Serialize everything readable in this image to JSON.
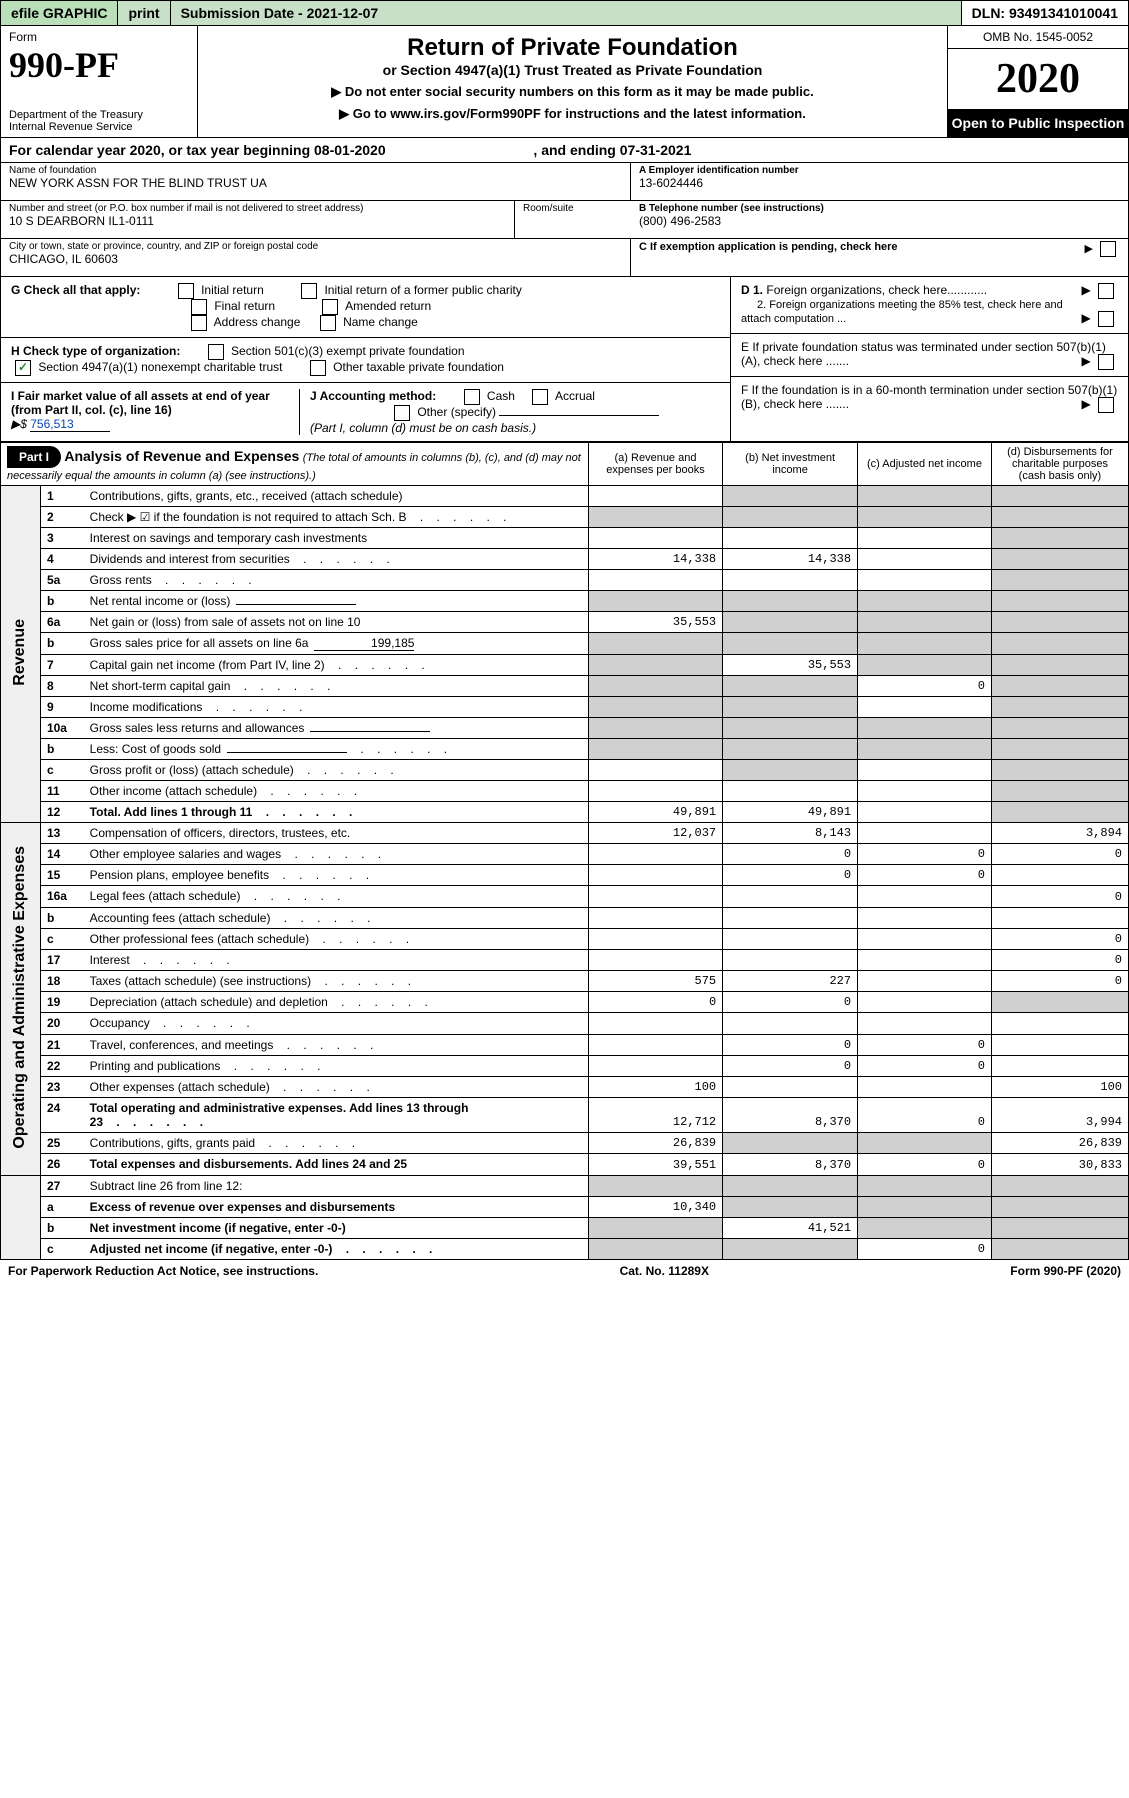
{
  "topbar": {
    "graphic": "efile GRAPHIC",
    "print": "print",
    "submission": "Submission Date - 2021-12-07",
    "dln": "DLN: 93491341010041"
  },
  "header": {
    "form": "Form",
    "number": "990-PF",
    "dept": "Department of the Treasury",
    "irs": "Internal Revenue Service",
    "title": "Return of Private Foundation",
    "subtitle": "or Section 4947(a)(1) Trust Treated as Private Foundation",
    "instr1": "▶ Do not enter social security numbers on this form as it may be made public.",
    "instr2": "▶ Go to www.irs.gov/Form990PF for instructions and the latest information.",
    "omb": "OMB No. 1545-0052",
    "year": "2020",
    "open": "Open to Public Inspection"
  },
  "calyear": {
    "text_a": "For calendar year 2020, or tax year beginning 08-01-2020",
    "text_b": ", and ending 07-31-2021"
  },
  "info": {
    "name_label": "Name of foundation",
    "name": "NEW YORK ASSN FOR THE BLIND TRUST UA",
    "addr_label": "Number and street (or P.O. box number if mail is not delivered to street address)",
    "addr": "10 S DEARBORN IL1-0111",
    "room_label": "Room/suite",
    "city_label": "City or town, state or province, country, and ZIP or foreign postal code",
    "city": "CHICAGO, IL  60603",
    "ein_label": "A Employer identification number",
    "ein": "13-6024446",
    "tel_label": "B Telephone number (see instructions)",
    "tel": "(800) 496-2583",
    "c_label": "C If exemption application is pending, check here"
  },
  "checks": {
    "g_label": "G Check all that apply:",
    "g_initial": "Initial return",
    "g_initial_former": "Initial return of a former public charity",
    "g_final": "Final return",
    "g_amended": "Amended return",
    "g_address": "Address change",
    "g_name": "Name change",
    "h_label": "H Check type of organization:",
    "h_501c3": "Section 501(c)(3) exempt private foundation",
    "h_4947": "Section 4947(a)(1) nonexempt charitable trust",
    "h_other": "Other taxable private foundation",
    "i_label": "I Fair market value of all assets at end of year (from Part II, col. (c), line 16)",
    "i_value": "756,513",
    "j_label": "J Accounting method:",
    "j_cash": "Cash",
    "j_accrual": "Accrual",
    "j_other": "Other (specify)",
    "j_note": "(Part I, column (d) must be on cash basis.)",
    "d1": "D 1. Foreign organizations, check here............",
    "d2": "2. Foreign organizations meeting the 85% test, check here and attach computation ...",
    "e_label": "E  If private foundation status was terminated under section 507(b)(1)(A), check here .......",
    "f_label": "F  If the foundation is in a 60-month termination under section 507(b)(1)(B), check here ......."
  },
  "part1": {
    "label": "Part I",
    "title": "Analysis of Revenue and Expenses",
    "note": " (The total of amounts in columns (b), (c), and (d) may not necessarily equal the amounts in column (a) (see instructions).)",
    "col_a": "(a)  Revenue and expenses per books",
    "col_b": "(b)  Net investment income",
    "col_c": "(c)  Adjusted net income",
    "col_d": "(d)  Disbursements for charitable purposes (cash basis only)"
  },
  "sidelabels": {
    "revenue": "Revenue",
    "expenses": "Operating and Administrative Expenses"
  },
  "lines": [
    {
      "n": "1",
      "d": "Contributions, gifts, grants, etc., received (attach schedule)",
      "a": "",
      "b": "",
      "c": null,
      "dd": null,
      "b_shade": true,
      "c_shade": true,
      "d_shade": true
    },
    {
      "n": "2",
      "d": "Check ▶ ☑ if the foundation is not required to attach Sch. B",
      "a": null,
      "b": null,
      "c": null,
      "dd": null,
      "a_shade": true,
      "b_shade": true,
      "c_shade": true,
      "d_shade": true,
      "dots": true
    },
    {
      "n": "3",
      "d": "Interest on savings and temporary cash investments",
      "a": "",
      "b": "",
      "c": "",
      "dd": null,
      "d_shade": true
    },
    {
      "n": "4",
      "d": "Dividends and interest from securities",
      "a": "14,338",
      "b": "14,338",
      "c": "",
      "dd": null,
      "d_shade": true,
      "dots": true
    },
    {
      "n": "5a",
      "d": "Gross rents",
      "a": "",
      "b": "",
      "c": "",
      "dd": null,
      "d_shade": true,
      "dots": true
    },
    {
      "n": "b",
      "d": "Net rental income or (loss)",
      "a": null,
      "b": null,
      "c": null,
      "dd": null,
      "a_shade": true,
      "b_shade": true,
      "c_shade": true,
      "d_shade": true,
      "inline_field": true
    },
    {
      "n": "6a",
      "d": "Net gain or (loss) from sale of assets not on line 10",
      "a": "35,553",
      "b": null,
      "c": null,
      "dd": null,
      "b_shade": true,
      "c_shade": true,
      "d_shade": true
    },
    {
      "n": "b",
      "d": "Gross sales price for all assets on line 6a",
      "a": null,
      "b": null,
      "c": null,
      "dd": null,
      "a_shade": true,
      "b_shade": true,
      "c_shade": true,
      "d_shade": true,
      "inline_val": "199,185"
    },
    {
      "n": "7",
      "d": "Capital gain net income (from Part IV, line 2)",
      "a": null,
      "b": "35,553",
      "c": null,
      "dd": null,
      "a_shade": true,
      "c_shade": true,
      "d_shade": true,
      "dots": true
    },
    {
      "n": "8",
      "d": "Net short-term capital gain",
      "a": null,
      "b": null,
      "c": "0",
      "dd": null,
      "a_shade": true,
      "b_shade": true,
      "d_shade": true,
      "dots": true
    },
    {
      "n": "9",
      "d": "Income modifications",
      "a": null,
      "b": null,
      "c": "",
      "dd": null,
      "a_shade": true,
      "b_shade": true,
      "d_shade": true,
      "dots": true
    },
    {
      "n": "10a",
      "d": "Gross sales less returns and allowances",
      "a": null,
      "b": null,
      "c": null,
      "dd": null,
      "a_shade": true,
      "b_shade": true,
      "c_shade": true,
      "d_shade": true,
      "inline_field": true
    },
    {
      "n": "b",
      "d": "Less: Cost of goods sold",
      "a": null,
      "b": null,
      "c": null,
      "dd": null,
      "a_shade": true,
      "b_shade": true,
      "c_shade": true,
      "d_shade": true,
      "inline_field": true,
      "dots": true
    },
    {
      "n": "c",
      "d": "Gross profit or (loss) (attach schedule)",
      "a": "",
      "b": null,
      "c": "",
      "dd": null,
      "b_shade": true,
      "d_shade": true,
      "dots": true
    },
    {
      "n": "11",
      "d": "Other income (attach schedule)",
      "a": "",
      "b": "",
      "c": "",
      "dd": null,
      "d_shade": true,
      "dots": true
    },
    {
      "n": "12",
      "d": "Total. Add lines 1 through 11",
      "a": "49,891",
      "b": "49,891",
      "c": "",
      "dd": null,
      "d_shade": true,
      "bold": true,
      "dots": true
    }
  ],
  "expense_lines": [
    {
      "n": "13",
      "d": "Compensation of officers, directors, trustees, etc.",
      "a": "12,037",
      "b": "8,143",
      "c": "",
      "dd": "3,894"
    },
    {
      "n": "14",
      "d": "Other employee salaries and wages",
      "a": "",
      "b": "0",
      "c": "0",
      "dd": "0",
      "dots": true
    },
    {
      "n": "15",
      "d": "Pension plans, employee benefits",
      "a": "",
      "b": "0",
      "c": "0",
      "dd": "",
      "dots": true
    },
    {
      "n": "16a",
      "d": "Legal fees (attach schedule)",
      "a": "",
      "b": "",
      "c": "",
      "dd": "0",
      "dots": true
    },
    {
      "n": "b",
      "d": "Accounting fees (attach schedule)",
      "a": "",
      "b": "",
      "c": "",
      "dd": "",
      "dots": true
    },
    {
      "n": "c",
      "d": "Other professional fees (attach schedule)",
      "a": "",
      "b": "",
      "c": "",
      "dd": "0",
      "dots": true
    },
    {
      "n": "17",
      "d": "Interest",
      "a": "",
      "b": "",
      "c": "",
      "dd": "0",
      "dots": true
    },
    {
      "n": "18",
      "d": "Taxes (attach schedule) (see instructions)",
      "a": "575",
      "b": "227",
      "c": "",
      "dd": "0",
      "dots": true
    },
    {
      "n": "19",
      "d": "Depreciation (attach schedule) and depletion",
      "a": "0",
      "b": "0",
      "c": "",
      "dd": null,
      "d_shade": true,
      "dots": true
    },
    {
      "n": "20",
      "d": "Occupancy",
      "a": "",
      "b": "",
      "c": "",
      "dd": "",
      "dots": true
    },
    {
      "n": "21",
      "d": "Travel, conferences, and meetings",
      "a": "",
      "b": "0",
      "c": "0",
      "dd": "",
      "dots": true
    },
    {
      "n": "22",
      "d": "Printing and publications",
      "a": "",
      "b": "0",
      "c": "0",
      "dd": "",
      "dots": true
    },
    {
      "n": "23",
      "d": "Other expenses (attach schedule)",
      "a": "100",
      "b": "",
      "c": "",
      "dd": "100",
      "dots": true
    },
    {
      "n": "24",
      "d": "Total operating and administrative expenses. Add lines 13 through 23",
      "a": "12,712",
      "b": "8,370",
      "c": "0",
      "dd": "3,994",
      "bold": true,
      "dots": true
    },
    {
      "n": "25",
      "d": "Contributions, gifts, grants paid",
      "a": "26,839",
      "b": null,
      "c": null,
      "dd": "26,839",
      "b_shade": true,
      "c_shade": true,
      "dots": true
    },
    {
      "n": "26",
      "d": "Total expenses and disbursements. Add lines 24 and 25",
      "a": "39,551",
      "b": "8,370",
      "c": "0",
      "dd": "30,833",
      "bold": true
    }
  ],
  "bottom_lines": [
    {
      "n": "27",
      "d": "Subtract line 26 from line 12:",
      "a": null,
      "b": null,
      "c": null,
      "dd": null,
      "a_shade": true,
      "b_shade": true,
      "c_shade": true,
      "d_shade": true
    },
    {
      "n": "a",
      "d": "Excess of revenue over expenses and disbursements",
      "a": "10,340",
      "b": null,
      "c": null,
      "dd": null,
      "b_shade": true,
      "c_shade": true,
      "d_shade": true,
      "bold": true
    },
    {
      "n": "b",
      "d": "Net investment income (if negative, enter -0-)",
      "a": null,
      "b": "41,521",
      "c": null,
      "dd": null,
      "a_shade": true,
      "c_shade": true,
      "d_shade": true,
      "bold": true
    },
    {
      "n": "c",
      "d": "Adjusted net income (if negative, enter -0-)",
      "a": null,
      "b": null,
      "c": "0",
      "dd": null,
      "a_shade": true,
      "b_shade": true,
      "d_shade": true,
      "bold": true,
      "dots": true
    }
  ],
  "footer": {
    "left": "For Paperwork Reduction Act Notice, see instructions.",
    "center": "Cat. No. 11289X",
    "right": "Form 990-PF (2020)"
  }
}
